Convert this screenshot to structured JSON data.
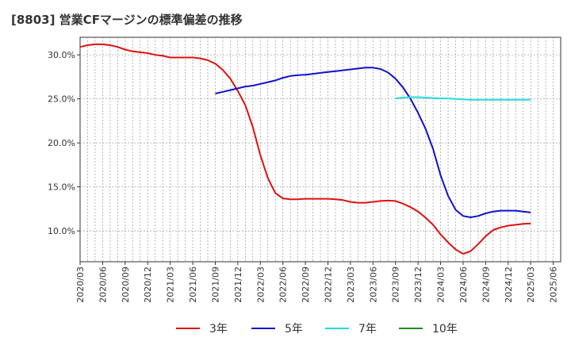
{
  "chart_data": {
    "type": "line",
    "title": "[8803]  営業CFマージンの標準偏差の推移",
    "xlabel": "",
    "ylabel": "",
    "ylim": [
      6.5,
      32.0
    ],
    "y_ticks": [
      10,
      15,
      20,
      25,
      30
    ],
    "y_tick_labels": [
      "10.0%",
      "15.0%",
      "20.0%",
      "25.0%",
      "30.0%"
    ],
    "x_tick_labels": [
      "2020/03",
      "2020/06",
      "2020/09",
      "2020/12",
      "2021/03",
      "2021/06",
      "2021/09",
      "2021/12",
      "2022/03",
      "2022/06",
      "2022/09",
      "2022/12",
      "2023/03",
      "2023/06",
      "2023/09",
      "2023/12",
      "2024/03",
      "2024/06",
      "2024/09",
      "2024/12",
      "2025/03",
      "2025/06"
    ],
    "grid": true,
    "legend_position": "bottom",
    "series": [
      {
        "name": "3年",
        "color": "#dd1111",
        "points": [
          [
            "2020/03",
            30.9
          ],
          [
            "2020/04",
            31.1
          ],
          [
            "2020/05",
            31.2
          ],
          [
            "2020/06",
            31.2
          ],
          [
            "2020/07",
            31.1
          ],
          [
            "2020/08",
            30.9
          ],
          [
            "2020/09",
            30.6
          ],
          [
            "2020/10",
            30.4
          ],
          [
            "2020/11",
            30.3
          ],
          [
            "2020/12",
            30.2
          ],
          [
            "2021/01",
            30.0
          ],
          [
            "2021/02",
            29.9
          ],
          [
            "2021/03",
            29.7
          ],
          [
            "2021/04",
            29.7
          ],
          [
            "2021/05",
            29.7
          ],
          [
            "2021/06",
            29.7
          ],
          [
            "2021/07",
            29.6
          ],
          [
            "2021/08",
            29.4
          ],
          [
            "2021/09",
            29.0
          ],
          [
            "2021/10",
            28.3
          ],
          [
            "2021/11",
            27.3
          ],
          [
            "2021/12",
            25.9
          ],
          [
            "2022/01",
            24.3
          ],
          [
            "2022/02",
            21.8
          ],
          [
            "2022/03",
            18.6
          ],
          [
            "2022/04",
            16.0
          ],
          [
            "2022/05",
            14.3
          ],
          [
            "2022/06",
            13.7
          ],
          [
            "2022/07",
            13.6
          ],
          [
            "2022/08",
            13.6
          ],
          [
            "2022/09",
            13.65
          ],
          [
            "2022/10",
            13.65
          ],
          [
            "2022/11",
            13.65
          ],
          [
            "2022/12",
            13.65
          ],
          [
            "2023/01",
            13.6
          ],
          [
            "2023/02",
            13.5
          ],
          [
            "2023/03",
            13.3
          ],
          [
            "2023/04",
            13.2
          ],
          [
            "2023/05",
            13.2
          ],
          [
            "2023/06",
            13.3
          ],
          [
            "2023/07",
            13.4
          ],
          [
            "2023/08",
            13.45
          ],
          [
            "2023/09",
            13.4
          ],
          [
            "2023/10",
            13.1
          ],
          [
            "2023/11",
            12.7
          ],
          [
            "2023/12",
            12.2
          ],
          [
            "2024/01",
            11.5
          ],
          [
            "2024/02",
            10.7
          ],
          [
            "2024/03",
            9.6
          ],
          [
            "2024/04",
            8.7
          ],
          [
            "2024/05",
            7.9
          ],
          [
            "2024/06",
            7.4
          ],
          [
            "2024/07",
            7.7
          ],
          [
            "2024/08",
            8.5
          ],
          [
            "2024/09",
            9.4
          ],
          [
            "2024/10",
            10.1
          ],
          [
            "2024/11",
            10.4
          ],
          [
            "2024/12",
            10.6
          ],
          [
            "2025/01",
            10.7
          ],
          [
            "2025/02",
            10.8
          ],
          [
            "2025/03",
            10.85
          ]
        ]
      },
      {
        "name": "5年",
        "color": "#1111cc",
        "points": [
          [
            "2021/09",
            25.6
          ],
          [
            "2021/10",
            25.8
          ],
          [
            "2021/11",
            26.0
          ],
          [
            "2021/12",
            26.2
          ],
          [
            "2022/01",
            26.4
          ],
          [
            "2022/02",
            26.5
          ],
          [
            "2022/03",
            26.7
          ],
          [
            "2022/04",
            26.9
          ],
          [
            "2022/05",
            27.1
          ],
          [
            "2022/06",
            27.4
          ],
          [
            "2022/07",
            27.6
          ],
          [
            "2022/08",
            27.7
          ],
          [
            "2022/09",
            27.75
          ],
          [
            "2022/10",
            27.85
          ],
          [
            "2022/11",
            27.95
          ],
          [
            "2022/12",
            28.05
          ],
          [
            "2023/01",
            28.15
          ],
          [
            "2023/02",
            28.25
          ],
          [
            "2023/03",
            28.35
          ],
          [
            "2023/04",
            28.45
          ],
          [
            "2023/05",
            28.55
          ],
          [
            "2023/06",
            28.55
          ],
          [
            "2023/07",
            28.4
          ],
          [
            "2023/08",
            28.0
          ],
          [
            "2023/09",
            27.3
          ],
          [
            "2023/10",
            26.3
          ],
          [
            "2023/11",
            25.0
          ],
          [
            "2023/12",
            23.4
          ],
          [
            "2024/01",
            21.6
          ],
          [
            "2024/02",
            19.3
          ],
          [
            "2024/03",
            16.3
          ],
          [
            "2024/04",
            14.0
          ],
          [
            "2024/05",
            12.4
          ],
          [
            "2024/06",
            11.7
          ],
          [
            "2024/07",
            11.55
          ],
          [
            "2024/08",
            11.7
          ],
          [
            "2024/09",
            12.0
          ],
          [
            "2024/10",
            12.2
          ],
          [
            "2024/11",
            12.3
          ],
          [
            "2024/12",
            12.3
          ],
          [
            "2025/01",
            12.3
          ],
          [
            "2025/02",
            12.2
          ],
          [
            "2025/03",
            12.1
          ]
        ]
      },
      {
        "name": "7年",
        "color": "#22dddd",
        "points": [
          [
            "2023/09",
            25.05
          ],
          [
            "2023/10",
            25.15
          ],
          [
            "2023/11",
            25.2
          ],
          [
            "2023/12",
            25.2
          ],
          [
            "2024/01",
            25.15
          ],
          [
            "2024/02",
            25.1
          ],
          [
            "2024/03",
            25.05
          ],
          [
            "2024/04",
            25.05
          ],
          [
            "2024/05",
            25.0
          ],
          [
            "2024/06",
            24.95
          ],
          [
            "2024/07",
            24.9
          ],
          [
            "2024/08",
            24.9
          ],
          [
            "2024/09",
            24.9
          ],
          [
            "2024/10",
            24.9
          ],
          [
            "2024/11",
            24.9
          ],
          [
            "2024/12",
            24.9
          ],
          [
            "2025/01",
            24.9
          ],
          [
            "2025/02",
            24.9
          ],
          [
            "2025/03",
            24.9
          ]
        ]
      },
      {
        "name": "10年",
        "color": "#228822",
        "points": []
      }
    ]
  }
}
